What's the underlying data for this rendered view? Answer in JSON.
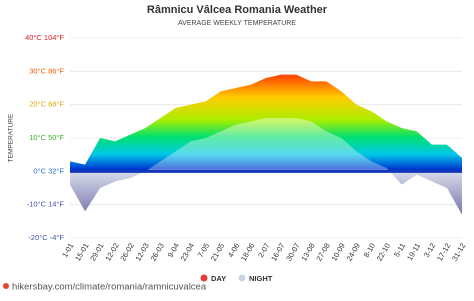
{
  "chart_data": {
    "type": "area",
    "title": "Râmnicu Vâlcea Romania Weather",
    "subtitle": "AVERAGE WEEKLY TEMPERATURE",
    "y_label": "TEMPERATURE",
    "categories": [
      "1-01",
      "15-01",
      "29-01",
      "12-02",
      "26-02",
      "12-03",
      "26-03",
      "9-04",
      "23-04",
      "7-05",
      "21-05",
      "4-06",
      "18-06",
      "2-07",
      "16-07",
      "30-07",
      "13-08",
      "27-08",
      "10-09",
      "24-09",
      "8-10",
      "22-10",
      "5-11",
      "19-11",
      "3-12",
      "17-12",
      "31-12"
    ],
    "series": [
      {
        "name": "DAY",
        "color": "#e53935",
        "values": [
          3,
          2,
          10,
          9,
          11,
          13,
          16,
          19,
          20,
          21,
          24,
          25,
          26,
          28,
          29,
          29,
          27,
          27,
          24,
          20,
          18,
          15,
          13,
          12,
          8,
          8,
          4
        ]
      },
      {
        "name": "NIGHT",
        "color": "#ccd3e3",
        "values": [
          -4,
          -12,
          -5,
          -3,
          -2,
          0,
          3,
          6,
          9,
          10,
          12,
          14,
          15,
          16,
          16,
          16,
          15,
          12,
          10,
          6,
          3,
          1,
          -4,
          -1,
          -3,
          -5,
          -13
        ]
      }
    ],
    "ylim": [
      -20,
      40
    ],
    "yticks": [
      {
        "value": -20,
        "label": "-20°C -4°F"
      },
      {
        "value": -10,
        "label": "-10°C 14°F"
      },
      {
        "value": 0,
        "label": "0°C 32°F"
      },
      {
        "value": 10,
        "label": "10°C 50°F"
      },
      {
        "value": 20,
        "label": "20°C 68°F"
      },
      {
        "value": 30,
        "label": "30°C 86°F"
      },
      {
        "value": 40,
        "label": "40°C 104°F"
      }
    ],
    "grid": true,
    "legend": "bottom",
    "source": "hikersbay.com/climate/romania/ramnicuvalcea"
  }
}
